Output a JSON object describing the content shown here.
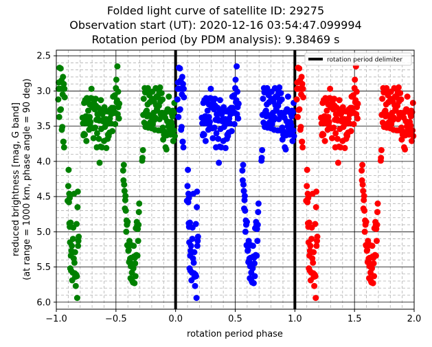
{
  "chart_data": {
    "type": "scatter",
    "title_lines": [
      "Folded light curve of satellite ID: 29275",
      "Observation start (UT): 2020-12-16 03:54:47.099994",
      "Rotation period (by PDM analysis): 9.38469 s"
    ],
    "xlabel": "rotation period phase",
    "ylabel_lines": [
      "reduced brightness [mag, G band]",
      "(at range = 1000 km, phase angle = 90 deg)"
    ],
    "xlim": [
      -1.0,
      2.0
    ],
    "ylim": [
      6.1,
      2.42
    ],
    "y_inverted": true,
    "xticks": [
      -1.0,
      -0.5,
      0.0,
      0.5,
      1.0,
      1.5,
      2.0
    ],
    "xtick_labels": [
      "−1.0",
      "−0.5",
      "0.0",
      "0.5",
      "1.0",
      "1.5",
      "2.0"
    ],
    "yticks": [
      2.5,
      3.0,
      3.5,
      4.0,
      4.5,
      5.0,
      5.5,
      6.0
    ],
    "ytick_labels": [
      "2.5",
      "3.0",
      "3.5",
      "4.0",
      "4.5",
      "5.0",
      "5.5",
      "6.0"
    ],
    "grid": {
      "major": true,
      "minor": true,
      "minor_step": 0.1
    },
    "delimiters": [
      0.0,
      1.0
    ],
    "legend": {
      "placement": "top-right",
      "label": "rotation period delimiter",
      "color": "#000000"
    },
    "series": [
      {
        "color": "#008000",
        "phase_offset": -1
      },
      {
        "color": "#0000ff",
        "phase_offset": 0
      },
      {
        "color": "#ff0000",
        "phase_offset": 1
      }
    ],
    "phase_points": [
      [
        0.016,
        3.12
      ],
      [
        0.019,
        2.97
      ],
      [
        0.02,
        2.88
      ],
      [
        0.024,
        3.37
      ],
      [
        0.027,
        2.67
      ],
      [
        0.032,
        3.27
      ],
      [
        0.033,
        2.97
      ],
      [
        0.036,
        2.68
      ],
      [
        0.038,
        3.26
      ],
      [
        0.043,
        2.85
      ],
      [
        0.046,
        3.55
      ],
      [
        0.05,
        3.51
      ],
      [
        0.053,
        3.05
      ],
      [
        0.056,
        2.8
      ],
      [
        0.059,
        3.72
      ],
      [
        0.06,
        3.72
      ],
      [
        0.062,
        2.9
      ],
      [
        0.065,
        3.8
      ],
      [
        0.068,
        2.97
      ],
      [
        0.07,
        3.09
      ],
      [
        0.095,
        4.56
      ],
      [
        0.1,
        4.35
      ],
      [
        0.103,
        4.12
      ],
      [
        0.106,
        4.58
      ],
      [
        0.108,
        4.46
      ],
      [
        0.11,
        4.88
      ],
      [
        0.112,
        4.52
      ],
      [
        0.113,
        4.93
      ],
      [
        0.115,
        5.15
      ],
      [
        0.117,
        5.52
      ],
      [
        0.12,
        4.87
      ],
      [
        0.122,
        5.34
      ],
      [
        0.124,
        5.55
      ],
      [
        0.126,
        5.27
      ],
      [
        0.13,
        5.2
      ],
      [
        0.133,
        5.69
      ],
      [
        0.137,
        5.58
      ],
      [
        0.14,
        5.1
      ],
      [
        0.142,
        4.94
      ],
      [
        0.146,
        5.38
      ],
      [
        0.149,
        4.46
      ],
      [
        0.152,
        5.44
      ],
      [
        0.155,
        5.59
      ],
      [
        0.157,
        5.29
      ],
      [
        0.158,
        5.64
      ],
      [
        0.163,
        5.77
      ],
      [
        0.167,
        5.61
      ],
      [
        0.17,
        4.89
      ],
      [
        0.172,
        5.63
      ],
      [
        0.175,
        5.94
      ],
      [
        0.178,
        4.65
      ],
      [
        0.18,
        4.43
      ],
      [
        0.182,
        5.2
      ],
      [
        0.185,
        5.13
      ],
      [
        0.188,
        5.07
      ],
      [
        0.22,
        3.38
      ],
      [
        0.224,
        3.46
      ],
      [
        0.228,
        3.63
      ],
      [
        0.232,
        3.61
      ],
      [
        0.233,
        3.17
      ],
      [
        0.237,
        3.39
      ],
      [
        0.239,
        3.62
      ],
      [
        0.242,
        3.13
      ],
      [
        0.247,
        3.36
      ],
      [
        0.25,
        3.46
      ],
      [
        0.252,
        3.71
      ],
      [
        0.256,
        3.1
      ],
      [
        0.259,
        3.37
      ],
      [
        0.263,
        3.38
      ],
      [
        0.264,
        3.14
      ],
      [
        0.268,
        3.28
      ],
      [
        0.271,
        3.42
      ],
      [
        0.275,
        3.55
      ],
      [
        0.279,
        3.19
      ],
      [
        0.28,
        3.37
      ],
      [
        0.283,
        3.48
      ],
      [
        0.287,
        3.44
      ],
      [
        0.291,
        3.1
      ],
      [
        0.295,
        2.97
      ],
      [
        0.3,
        3.23
      ],
      [
        0.305,
        3.11
      ],
      [
        0.309,
        3.53
      ],
      [
        0.312,
        3.67
      ],
      [
        0.315,
        3.16
      ],
      [
        0.318,
        3.21
      ],
      [
        0.322,
        3.26
      ],
      [
        0.326,
        3.52
      ],
      [
        0.33,
        3.11
      ],
      [
        0.333,
        3.21
      ],
      [
        0.336,
        3.41
      ],
      [
        0.339,
        3.8
      ],
      [
        0.342,
        3.6
      ],
      [
        0.345,
        3.33
      ],
      [
        0.349,
        3.39
      ],
      [
        0.353,
        3.24
      ],
      [
        0.357,
        3.68
      ],
      [
        0.36,
        3.42
      ],
      [
        0.363,
        4.02
      ],
      [
        0.366,
        3.31
      ],
      [
        0.37,
        3.79
      ],
      [
        0.373,
        3.13
      ],
      [
        0.377,
        3.54
      ],
      [
        0.38,
        3.27
      ],
      [
        0.383,
        3.8
      ],
      [
        0.387,
        3.33
      ],
      [
        0.391,
        3.43
      ],
      [
        0.395,
        3.29
      ],
      [
        0.397,
        3.4
      ],
      [
        0.4,
        3.71
      ],
      [
        0.403,
        3.23
      ],
      [
        0.407,
        3.51
      ],
      [
        0.41,
        3.41
      ],
      [
        0.413,
        3.45
      ],
      [
        0.416,
        3.4
      ],
      [
        0.419,
        3.81
      ],
      [
        0.423,
        3.47
      ],
      [
        0.426,
        3.29
      ],
      [
        0.43,
        3.68
      ],
      [
        0.433,
        3.62
      ],
      [
        0.436,
        3.45
      ],
      [
        0.439,
        3.64
      ],
      [
        0.442,
        3.4
      ],
      [
        0.446,
        3.59
      ],
      [
        0.45,
        3.39
      ],
      [
        0.453,
        3.26
      ],
      [
        0.456,
        3.46
      ],
      [
        0.46,
        3.33
      ],
      [
        0.463,
        3.3
      ],
      [
        0.466,
        3.24
      ],
      [
        0.47,
        3.57
      ],
      [
        0.473,
        3.25
      ],
      [
        0.476,
        3.08
      ],
      [
        0.479,
        3.24
      ],
      [
        0.483,
        3.31
      ],
      [
        0.486,
        3.31
      ],
      [
        0.49,
        3.06
      ],
      [
        0.493,
        3.47
      ],
      [
        0.496,
        3.31
      ],
      [
        0.5,
        2.96
      ],
      [
        0.503,
        2.84
      ],
      [
        0.506,
        3.16
      ],
      [
        0.509,
        3.13
      ],
      [
        0.512,
        2.65
      ],
      [
        0.515,
        3.33
      ],
      [
        0.518,
        3.01
      ],
      [
        0.52,
        3.23
      ],
      [
        0.525,
        3.39
      ],
      [
        0.528,
        3.18
      ],
      [
        0.56,
        4.13
      ],
      [
        0.563,
        4.27
      ],
      [
        0.566,
        4.05
      ],
      [
        0.569,
        4.33
      ],
      [
        0.572,
        4.42
      ],
      [
        0.575,
        4.67
      ],
      [
        0.578,
        4.55
      ],
      [
        0.58,
        4.49
      ],
      [
        0.583,
        4.7
      ],
      [
        0.586,
        5.0
      ],
      [
        0.589,
        4.84
      ],
      [
        0.592,
        4.9
      ],
      [
        0.595,
        5.19
      ],
      [
        0.598,
        4.86
      ],
      [
        0.6,
        5.2
      ],
      [
        0.604,
        5.27
      ],
      [
        0.607,
        5.26
      ],
      [
        0.61,
        5.43
      ],
      [
        0.613,
        5.13
      ],
      [
        0.616,
        5.41
      ],
      [
        0.619,
        5.38
      ],
      [
        0.622,
        5.66
      ],
      [
        0.625,
        5.49
      ],
      [
        0.628,
        5.37
      ],
      [
        0.631,
        5.19
      ],
      [
        0.634,
        5.58
      ],
      [
        0.637,
        5.7
      ],
      [
        0.64,
        5.46
      ],
      [
        0.643,
        5.72
      ],
      [
        0.646,
        5.52
      ],
      [
        0.649,
        5.2
      ],
      [
        0.652,
        5.35
      ],
      [
        0.655,
        5.73
      ],
      [
        0.658,
        5.37
      ],
      [
        0.661,
        5.45
      ],
      [
        0.664,
        5.63
      ],
      [
        0.667,
        4.95
      ],
      [
        0.67,
        4.95
      ],
      [
        0.672,
        5.33
      ],
      [
        0.675,
        4.86
      ],
      [
        0.678,
        4.91
      ],
      [
        0.68,
        5.34
      ],
      [
        0.683,
        4.96
      ],
      [
        0.686,
        5.13
      ],
      [
        0.689,
        4.9
      ],
      [
        0.692,
        4.72
      ],
      [
        0.695,
        4.6
      ],
      [
        0.72,
        3.99
      ],
      [
        0.722,
        3.95
      ],
      [
        0.726,
        3.84
      ],
      [
        0.729,
        3.34
      ],
      [
        0.733,
        3.11
      ],
      [
        0.737,
        3.45
      ],
      [
        0.741,
        2.96
      ],
      [
        0.745,
        3.02
      ],
      [
        0.748,
        3.51
      ],
      [
        0.751,
        3.3
      ],
      [
        0.754,
        3.47
      ],
      [
        0.758,
        3.28
      ],
      [
        0.761,
        3.36
      ],
      [
        0.765,
        3.19
      ],
      [
        0.768,
        2.96
      ],
      [
        0.771,
        3.52
      ],
      [
        0.774,
        3.34
      ],
      [
        0.777,
        3.04
      ],
      [
        0.78,
        3.06
      ],
      [
        0.784,
        3.16
      ],
      [
        0.787,
        3.45
      ],
      [
        0.79,
        3.44
      ],
      [
        0.793,
        3.36
      ],
      [
        0.797,
        3.14
      ],
      [
        0.8,
        3.53
      ],
      [
        0.803,
        3.11
      ],
      [
        0.806,
        3.01
      ],
      [
        0.809,
        3.47
      ],
      [
        0.812,
        3.13
      ],
      [
        0.816,
        3.31
      ],
      [
        0.82,
        3.15
      ],
      [
        0.823,
        3.41
      ],
      [
        0.826,
        3.55
      ],
      [
        0.83,
        3.38
      ],
      [
        0.833,
        2.96
      ],
      [
        0.836,
        3.2
      ],
      [
        0.84,
        3.08
      ],
      [
        0.843,
        3.26
      ],
      [
        0.847,
        3.28
      ],
      [
        0.85,
        3.07
      ],
      [
        0.853,
        3.09
      ],
      [
        0.856,
        3.56
      ],
      [
        0.86,
        3.21
      ],
      [
        0.863,
        3.02
      ],
      [
        0.866,
        3.4
      ],
      [
        0.87,
        2.95
      ],
      [
        0.873,
        3.15
      ],
      [
        0.876,
        3.33
      ],
      [
        0.88,
        3.56
      ],
      [
        0.883,
        3.03
      ],
      [
        0.886,
        3.31
      ],
      [
        0.89,
        3.12
      ],
      [
        0.893,
        3.52
      ],
      [
        0.896,
        3.69
      ],
      [
        0.9,
        3.36
      ],
      [
        0.903,
        3.62
      ],
      [
        0.906,
        3.62
      ],
      [
        0.91,
        3.58
      ],
      [
        0.913,
        3.38
      ],
      [
        0.916,
        3.8
      ],
      [
        0.92,
        3.3
      ],
      [
        0.923,
        3.83
      ],
      [
        0.926,
        3.63
      ],
      [
        0.93,
        3.43
      ],
      [
        0.933,
        3.26
      ],
      [
        0.936,
        3.26
      ],
      [
        0.94,
        3.5
      ],
      [
        0.943,
        3.08
      ],
      [
        0.946,
        3.52
      ],
      [
        0.95,
        3.6
      ],
      [
        0.955,
        3.57
      ],
      [
        0.958,
        3.62
      ],
      [
        0.96,
        3.46
      ],
      [
        0.963,
        3.44
      ],
      [
        0.966,
        3.32
      ],
      [
        0.97,
        3.49
      ],
      [
        0.973,
        3.36
      ],
      [
        0.976,
        3.28
      ],
      [
        0.98,
        3.71
      ],
      [
        0.983,
        3.3
      ],
      [
        0.986,
        3.56
      ],
      [
        0.99,
        3.17
      ],
      [
        0.993,
        3.64
      ]
    ]
  }
}
